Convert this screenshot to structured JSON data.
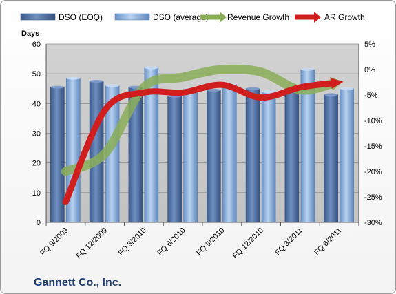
{
  "chart_data": {
    "type": "bar",
    "company": "Gannett Co., Inc.",
    "ylabel": "Days",
    "categories": [
      "FQ 9/2009",
      "FQ 12/2009",
      "FQ 3/2010",
      "FQ 6/2010",
      "FQ 9/2010",
      "FQ 12/2010",
      "FQ 3/2011",
      "FQ 6/2011"
    ],
    "ylim": [
      0,
      60
    ],
    "y_ticks": [
      0,
      10,
      20,
      30,
      40,
      50,
      60
    ],
    "y2lim": [
      -30,
      5
    ],
    "y2_ticks": [
      -30,
      -25,
      -20,
      -15,
      -10,
      -5,
      0,
      5
    ],
    "y2_format": "percent",
    "grid": true,
    "legend_position": "top",
    "bar_series": [
      {
        "name": "DSO (EOQ)",
        "values": [
          45.5,
          47.5,
          45.5,
          42.5,
          44.5,
          45,
          45,
          43
        ]
      },
      {
        "name": "DSO (average)",
        "values": [
          48.5,
          46,
          52,
          45,
          46.5,
          44,
          51.5,
          45
        ]
      }
    ],
    "line_series": [
      {
        "name": "Revenue Growth",
        "axis": "right",
        "values": [
          -20,
          -16.5,
          -3.5,
          -1.5,
          0,
          -0.5,
          -4,
          -2.5
        ]
      },
      {
        "name": "AR Growth",
        "axis": "right",
        "values": [
          -26,
          -8,
          -4.5,
          -4.5,
          -3,
          -5.5,
          -3.5,
          -2.5
        ]
      }
    ],
    "colors": {
      "dso_eoq": "#4f6fa0",
      "dso_avg": "#7fa3d3",
      "revenue_growth": "#8aad58",
      "ar_growth": "#d01e1e",
      "plot_bg": "#c8c8c8"
    }
  }
}
